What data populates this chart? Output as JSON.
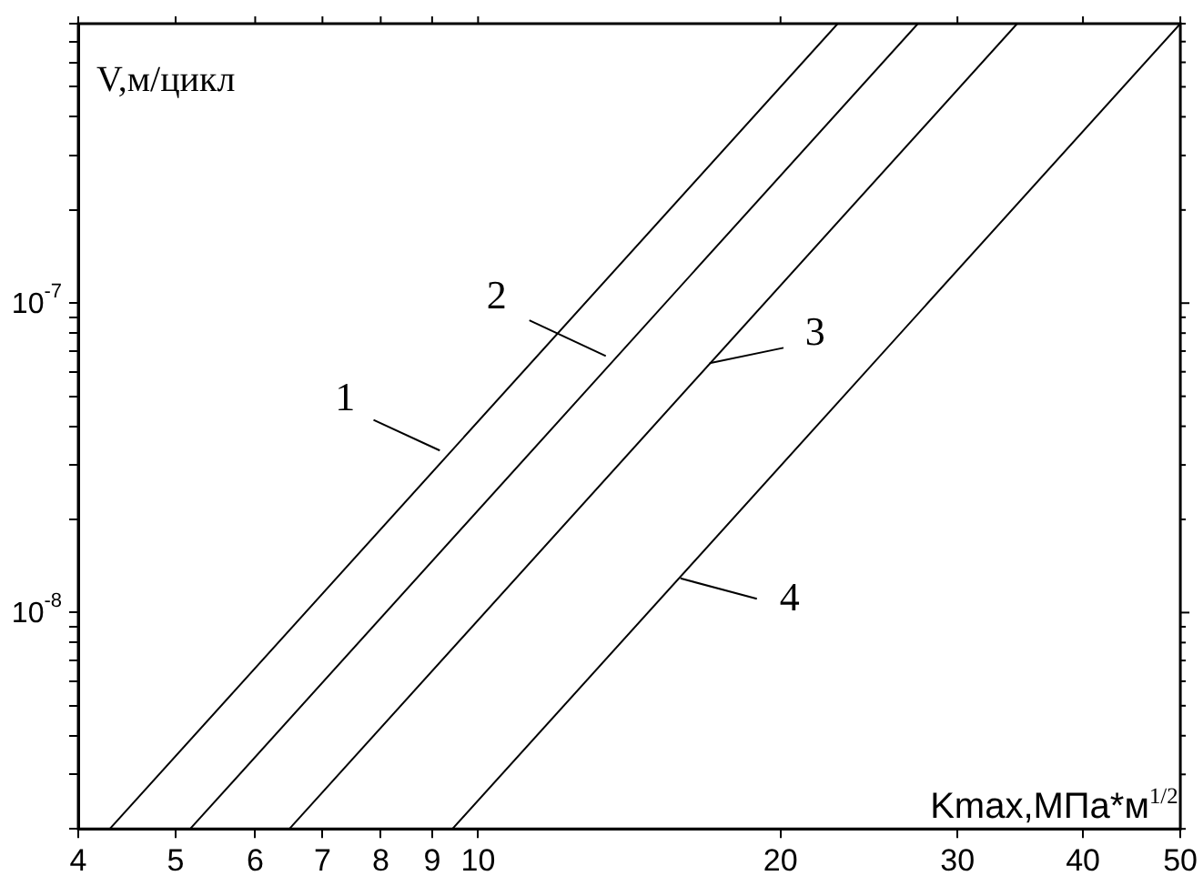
{
  "chart_data": {
    "type": "line",
    "xlabel": "Kmax,МПа*м$^{1/2}$",
    "ylabel": "V,м/цикл",
    "log": "xy",
    "grid": false,
    "legend": false,
    "marker": "none",
    "line_style": "solid",
    "xlim": [
      4,
      50
    ],
    "xticks": [
      4,
      5,
      6,
      7,
      8,
      9,
      10,
      20,
      30,
      40,
      50
    ],
    "ylim": [
      2e-09,
      8e-07
    ],
    "yticks": [
      {
        "value": 2e-09,
        "label": null
      },
      {
        "value": 3e-09,
        "label": null
      },
      {
        "value": 4e-09,
        "label": null
      },
      {
        "value": 5e-09,
        "label": null
      },
      {
        "value": 6e-09,
        "label": null
      },
      {
        "value": 7e-09,
        "label": null
      },
      {
        "value": 8e-09,
        "label": null
      },
      {
        "value": 9e-09,
        "label": null
      },
      {
        "value": 1e-08,
        "label": "10$^{-8}$"
      },
      {
        "value": 2e-08,
        "label": null
      },
      {
        "value": 3e-08,
        "label": null
      },
      {
        "value": 4e-08,
        "label": null
      },
      {
        "value": 5e-08,
        "label": null
      },
      {
        "value": 6e-08,
        "label": null
      },
      {
        "value": 7e-08,
        "label": null
      },
      {
        "value": 8e-08,
        "label": null
      },
      {
        "value": 9e-08,
        "label": null
      },
      {
        "value": 1e-07,
        "label": "10$^{-7}$"
      },
      {
        "value": 2e-07,
        "label": null
      },
      {
        "value": 3e-07,
        "label": null
      },
      {
        "value": 4e-07,
        "label": null
      },
      {
        "value": 5e-07,
        "label": null
      },
      {
        "value": 6e-07,
        "label": null
      },
      {
        "value": 7e-07,
        "label": null
      },
      {
        "value": 8e-07,
        "label": null
      }
    ],
    "series": [
      {
        "color": "#000000",
        "x": [
          4.3,
          22.8
        ],
        "values": [
          2e-09,
          8e-07
        ]
      },
      {
        "color": "#000000",
        "x": [
          5.17,
          27.4
        ],
        "values": [
          2e-09,
          8e-07
        ]
      },
      {
        "color": "#000000",
        "x": [
          6.49,
          34.4
        ],
        "values": [
          2e-09,
          8e-07
        ]
      },
      {
        "color": "#000000",
        "x": [
          9.43,
          50
        ],
        "values": [
          2e-09,
          8e-07
        ]
      }
    ],
    "annotations": [
      {
        "text": "1",
        "x": 9.16,
        "y": 3.34e-08
      },
      {
        "text": "2",
        "x": 13.4,
        "y": 6.75e-08
      },
      {
        "text": "3",
        "x": 17.0,
        "y": 6.4e-08
      },
      {
        "text": "4",
        "x": 15.9,
        "y": 1.29e-08
      }
    ]
  }
}
